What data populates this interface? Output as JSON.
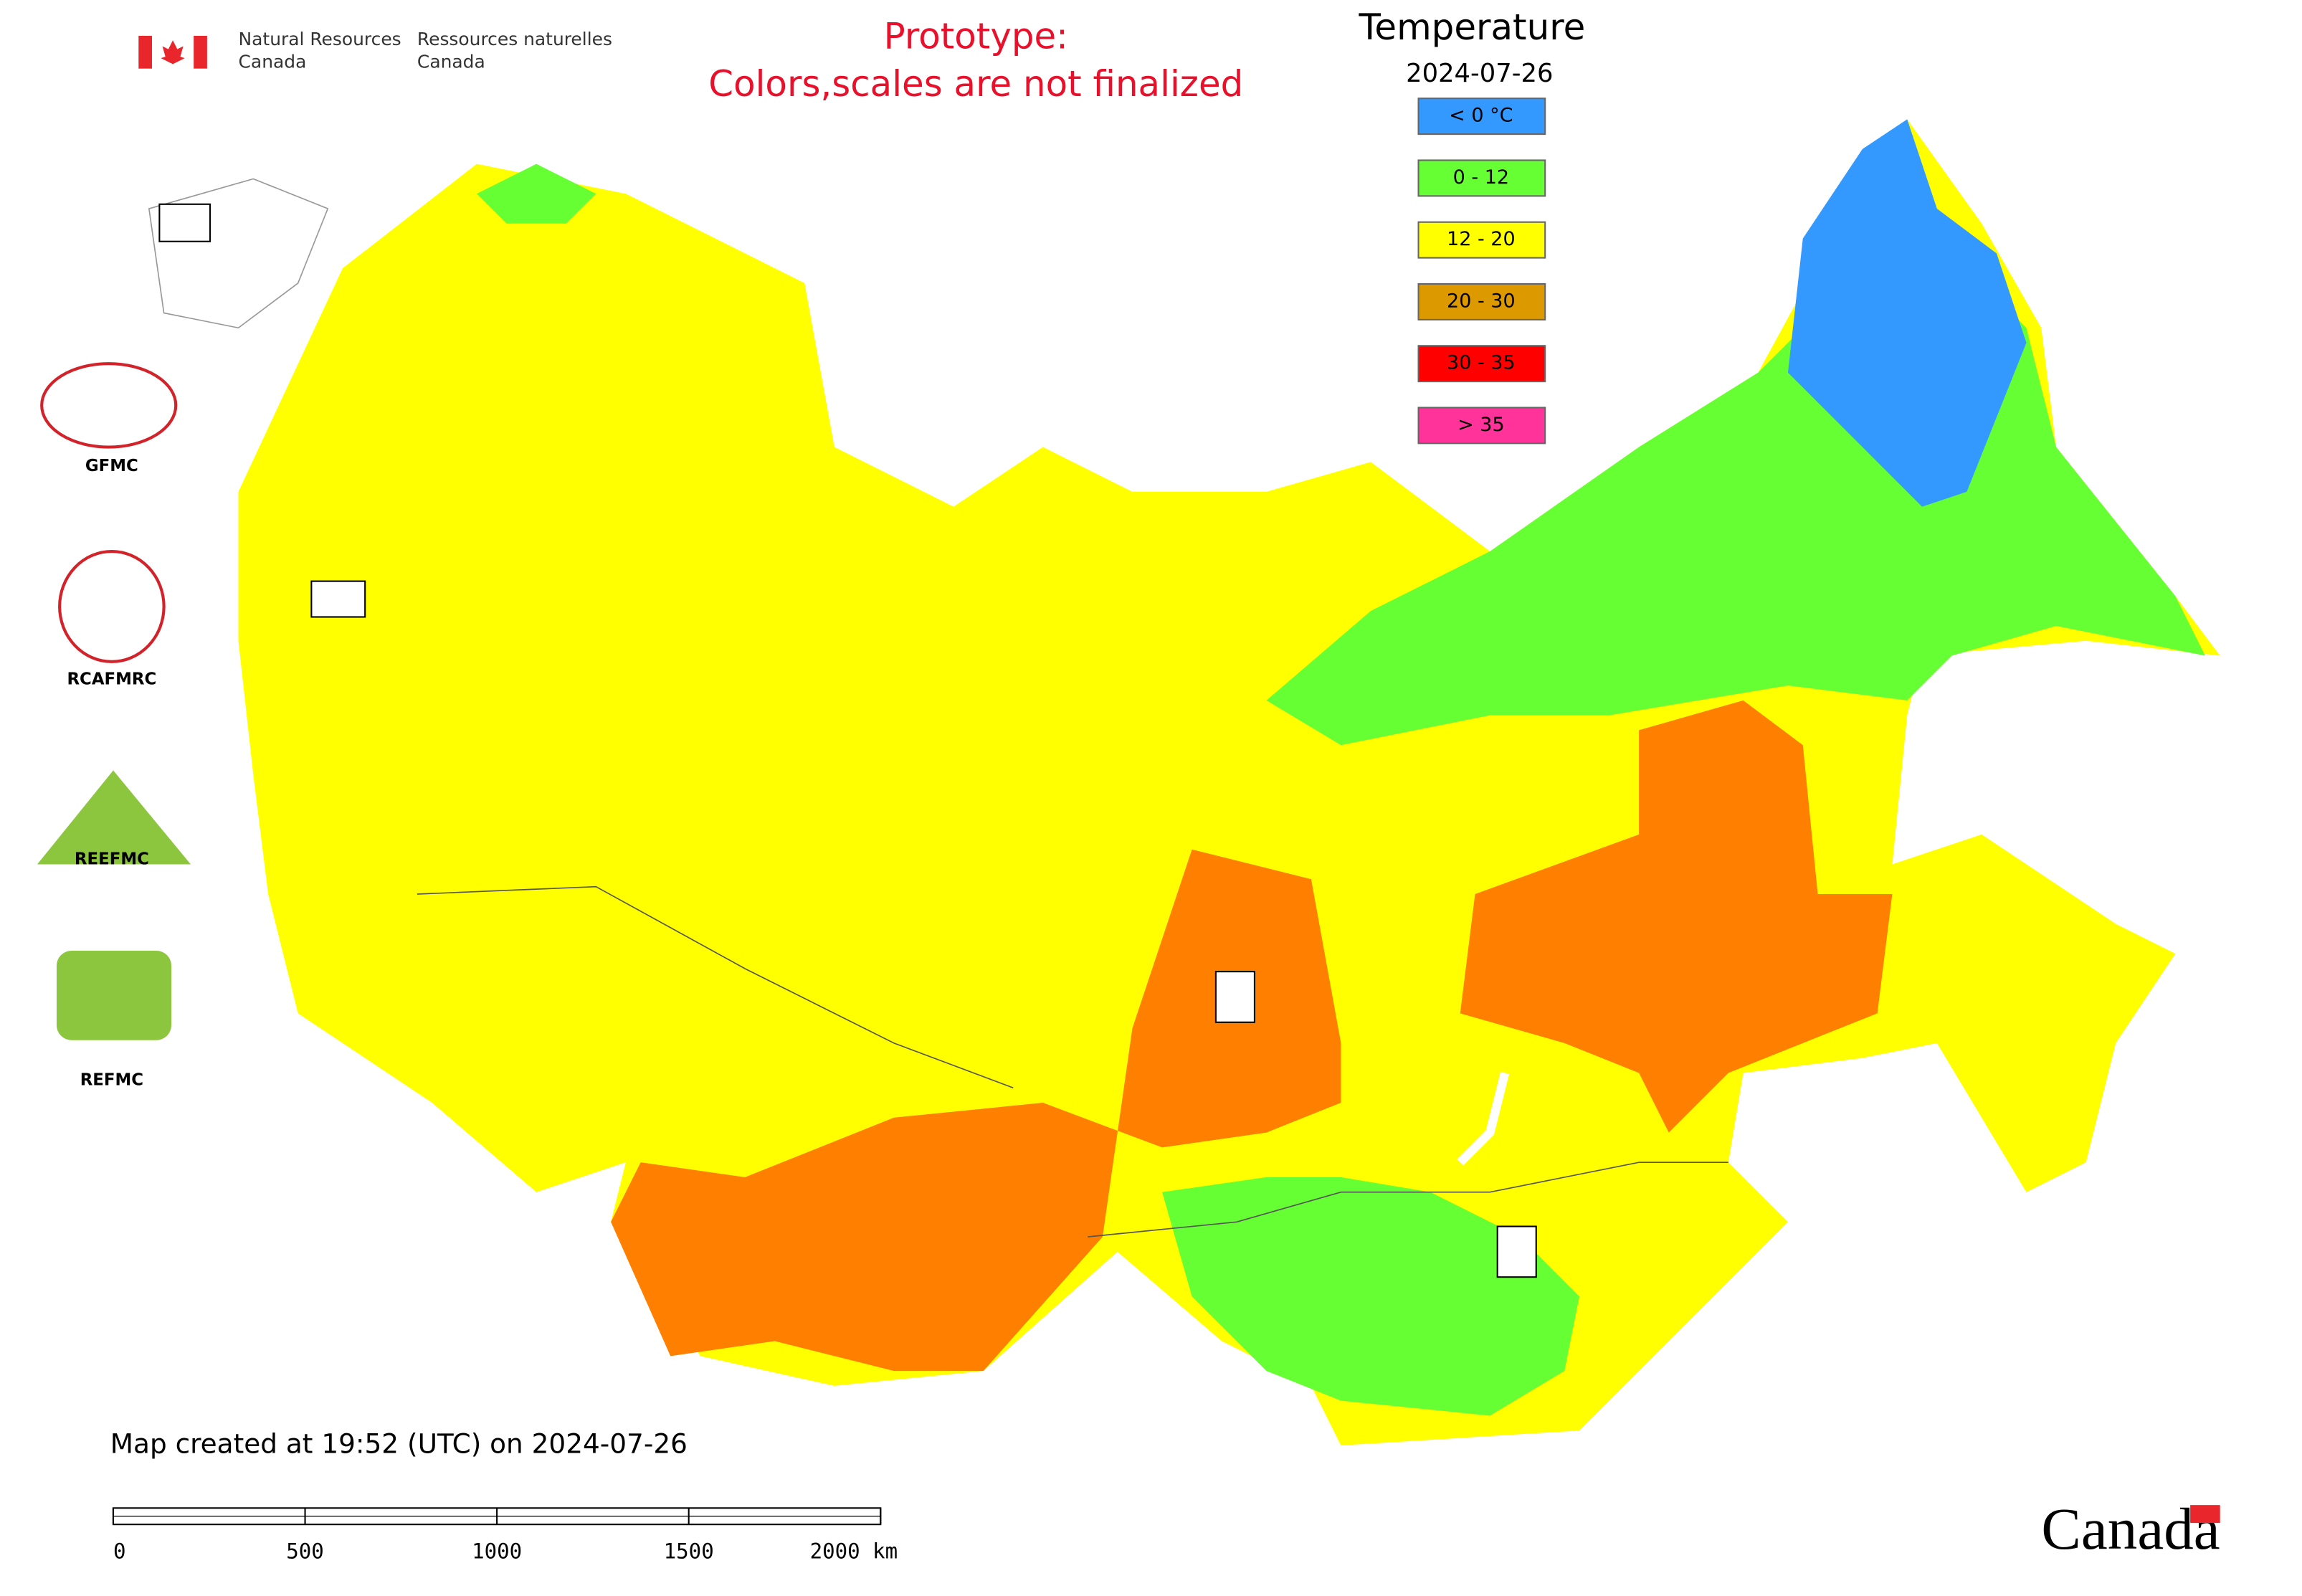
{
  "header": {
    "org_en": [
      "Natural Resources",
      "Canada"
    ],
    "org_fr": [
      "Ressources naturelles",
      "Canada"
    ]
  },
  "notice": [
    "Prototype:",
    "Colors,scales are not finalized"
  ],
  "legend": {
    "title": "Temperature",
    "date": "2024-07-26",
    "items": [
      {
        "label": "< 0 °C",
        "color": "#3399ff"
      },
      {
        "label": "0 - 12",
        "color": "#66ff33"
      },
      {
        "label": "12 - 20",
        "color": "#ffff00"
      },
      {
        "label": "20 - 30",
        "color": "#dd9900"
      },
      {
        "label": "30 - 35",
        "color": "#ff0000"
      },
      {
        "label": "> 35",
        "color": "#ff3399"
      }
    ]
  },
  "centers": [
    {
      "label": "GFMC"
    },
    {
      "label": "RCAFMRC"
    },
    {
      "label": "REEFMC"
    },
    {
      "label": "REFMC"
    }
  ],
  "footer": "Map created at 19:52 (UTC) on 2024-07-26",
  "scale_bar": [
    "0",
    "500",
    "1000",
    "1500",
    "2000 km"
  ],
  "wordmark": "Canada"
}
